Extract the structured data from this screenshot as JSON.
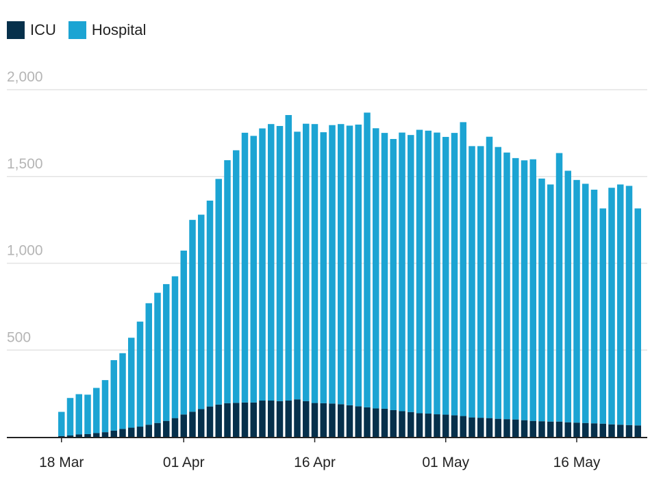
{
  "chart_data": {
    "type": "bar",
    "stacked": true,
    "title": "",
    "xlabel": "",
    "ylabel": "",
    "ylim": [
      0,
      2000
    ],
    "yticks": [
      500,
      1000,
      1500,
      2000
    ],
    "ytick_labels": [
      "500",
      "1,000",
      "1,500",
      "2,000"
    ],
    "grid": true,
    "legend_position": "top-left",
    "xtick_labels": [
      {
        "label": "18 Mar",
        "date": "2020-03-18"
      },
      {
        "label": "01 Apr",
        "date": "2020-04-01"
      },
      {
        "label": "16 Apr",
        "date": "2020-04-16"
      },
      {
        "label": "01 May",
        "date": "2020-05-01"
      },
      {
        "label": "16 May",
        "date": "2020-05-16"
      }
    ],
    "categories": [
      "2020-03-18",
      "2020-03-19",
      "2020-03-20",
      "2020-03-21",
      "2020-03-22",
      "2020-03-23",
      "2020-03-24",
      "2020-03-25",
      "2020-03-26",
      "2020-03-27",
      "2020-03-28",
      "2020-03-29",
      "2020-03-30",
      "2020-03-31",
      "2020-04-01",
      "2020-04-02",
      "2020-04-03",
      "2020-04-04",
      "2020-04-05",
      "2020-04-06",
      "2020-04-07",
      "2020-04-08",
      "2020-04-09",
      "2020-04-10",
      "2020-04-11",
      "2020-04-12",
      "2020-04-13",
      "2020-04-14",
      "2020-04-15",
      "2020-04-16",
      "2020-04-17",
      "2020-04-18",
      "2020-04-19",
      "2020-04-20",
      "2020-04-21",
      "2020-04-22",
      "2020-04-23",
      "2020-04-24",
      "2020-04-25",
      "2020-04-26",
      "2020-04-27",
      "2020-04-28",
      "2020-04-29",
      "2020-04-30",
      "2020-05-01",
      "2020-05-02",
      "2020-05-03",
      "2020-05-04",
      "2020-05-05",
      "2020-05-06",
      "2020-05-07",
      "2020-05-08",
      "2020-05-09",
      "2020-05-10",
      "2020-05-11",
      "2020-05-12",
      "2020-05-13",
      "2020-05-14",
      "2020-05-15",
      "2020-05-16",
      "2020-05-17",
      "2020-05-18",
      "2020-05-19",
      "2020-05-20",
      "2020-05-21",
      "2020-05-22",
      "2020-05-23"
    ],
    "series": [
      {
        "name": "ICU",
        "color": "#06304b",
        "values": [
          5,
          8,
          14,
          16,
          22,
          27,
          36,
          46,
          53,
          59,
          70,
          80,
          92,
          108,
          129,
          145,
          160,
          175,
          186,
          194,
          196,
          198,
          198,
          209,
          209,
          206,
          209,
          216,
          206,
          195,
          194,
          192,
          188,
          182,
          176,
          170,
          164,
          162,
          154,
          148,
          143,
          136,
          134,
          130,
          128,
          124,
          120,
          112,
          110,
          108,
          104,
          102,
          100,
          96,
          92,
          90,
          88,
          88,
          84,
          82,
          80,
          78,
          76,
          72,
          70,
          68,
          66
        ]
      },
      {
        "name": "Hospital",
        "color": "#1ca4d3",
        "values": [
          139,
          216,
          232,
          227,
          260,
          300,
          406,
          436,
          518,
          605,
          700,
          750,
          788,
          817,
          944,
          1105,
          1120,
          1186,
          1300,
          1400,
          1455,
          1554,
          1536,
          1568,
          1593,
          1585,
          1645,
          1542,
          1598,
          1607,
          1561,
          1604,
          1614,
          1611,
          1623,
          1698,
          1614,
          1589,
          1562,
          1605,
          1596,
          1633,
          1630,
          1623,
          1600,
          1627,
          1693,
          1563,
          1565,
          1621,
          1566,
          1536,
          1506,
          1497,
          1507,
          1398,
          1366,
          1547,
          1449,
          1398,
          1378,
          1346,
          1240,
          1363,
          1384,
          1378,
          1250
        ]
      }
    ]
  }
}
